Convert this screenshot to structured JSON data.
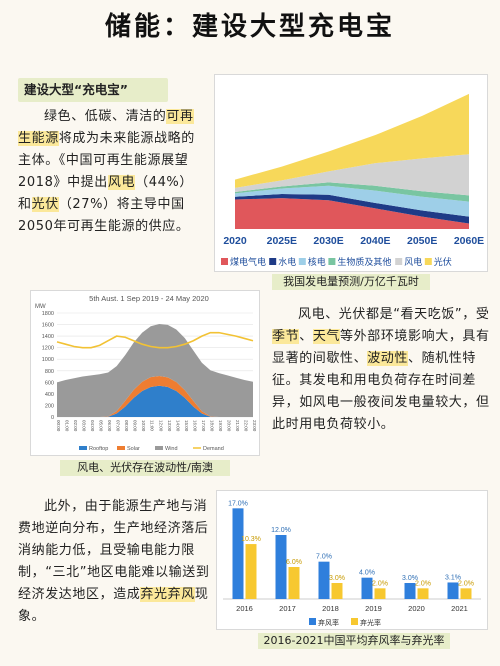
{
  "title": "储能：建设大型充电宝",
  "section_tag": "建设大型“充电宝”",
  "para1": {
    "t1": "绿色、低碳、清洁的",
    "t2": "可再生能源",
    "t3": "将成为未来能源战略的主体。《中国可再生能源展望2018》中提出",
    "t4": "风电",
    "t5": "（44%）和",
    "t6": "光伏",
    "t7": "（27%）将主导中国2050年可再生能源的供应。"
  },
  "para2": {
    "t1": "风电、光伏都是“看天吃饭”，受",
    "t2": "季节",
    "t3": "、",
    "t4": "天气",
    "t5": "等外部环境影响大，具有显著的间歇性、",
    "t6": "波动性",
    "t7": "、随机性特征。其发电和用电负荷存在时间差异，如风电一般夜间发电量较大，但此时用电负荷较小。"
  },
  "para3": {
    "t1": "此外，由于能源生产地与消费地逆向分布，生产地经济落后消纳能力低，且受输电能力限制，“三北”地区电能难以输送到经济发达地区，造成",
    "t2": "弃光弃风",
    "t3": "现象。"
  },
  "chart_data": [
    {
      "type": "area",
      "categories": [
        "2020",
        "2025E",
        "2030E",
        "2040E",
        "2050E",
        "2060E"
      ],
      "series": [
        {
          "name": "煤电气电",
          "color": "#e0575b",
          "values": [
            4.3,
            4.5,
            4.2,
            3.0,
            1.8,
            0.8
          ]
        },
        {
          "name": "水电",
          "color": "#1f3b87",
          "values": [
            0.4,
            0.6,
            0.8,
            0.8,
            0.9,
            1.0
          ]
        },
        {
          "name": "核电",
          "color": "#9ecfe8",
          "values": [
            0.5,
            0.8,
            1.3,
            1.8,
            2.0,
            2.2
          ]
        },
        {
          "name": "生物质及其他",
          "color": "#79c5a1",
          "values": [
            0.2,
            0.3,
            0.5,
            0.7,
            0.8,
            0.9
          ]
        },
        {
          "name": "风电",
          "color": "#d2d2d2",
          "values": [
            0.6,
            0.9,
            1.6,
            3.3,
            4.8,
            6.0
          ]
        },
        {
          "name": "光伏",
          "color": "#f7d85a",
          "values": [
            1.2,
            2.0,
            2.9,
            4.1,
            6.2,
            8.8
          ]
        }
      ],
      "caption": "我国发电量预测/万亿千瓦时"
    },
    {
      "type": "area",
      "title": "5th Aust. 1 Sep 2019 - 24 May 2020",
      "ylabel": "MW",
      "yticks": [
        "0",
        "200",
        "400",
        "600",
        "800",
        "1000",
        "1200",
        "1400",
        "1600",
        "1800"
      ],
      "ylim": [
        0,
        1800
      ],
      "x": [
        "00:00",
        "01:00",
        "02:00",
        "03:00",
        "04:00",
        "05:00",
        "06:00",
        "07:00",
        "08:00",
        "09:00",
        "10:00",
        "11:00",
        "12:00",
        "13:00",
        "14:00",
        "15:00",
        "16:00",
        "17:00",
        "18:00",
        "19:00",
        "20:00",
        "21:00",
        "22:00",
        "23:00"
      ],
      "series": [
        {
          "name": "Rooftop",
          "color": "#2f7fcb",
          "values": [
            0,
            0,
            0,
            0,
            0,
            0,
            5,
            60,
            180,
            330,
            450,
            520,
            540,
            520,
            450,
            330,
            180,
            60,
            5,
            0,
            0,
            0,
            0,
            0
          ]
        },
        {
          "name": "Solar",
          "color": "#ee7d31",
          "values": [
            0,
            0,
            0,
            0,
            0,
            0,
            5,
            40,
            100,
            140,
            160,
            170,
            170,
            165,
            155,
            135,
            100,
            40,
            5,
            0,
            0,
            0,
            0,
            0
          ]
        },
        {
          "name": "Wind",
          "color": "#9a9a9a",
          "values": [
            600,
            640,
            670,
            700,
            720,
            740,
            760,
            780,
            790,
            820,
            850,
            880,
            900,
            910,
            910,
            900,
            870,
            840,
            800,
            760,
            720,
            680,
            640,
            610
          ]
        },
        {
          "name": "Demand",
          "color": "#f2c234",
          "values": [
            1300,
            1260,
            1220,
            1200,
            1200,
            1240,
            1320,
            1400,
            1380,
            1320,
            1260,
            1220,
            1200,
            1200,
            1220,
            1260,
            1320,
            1400,
            1460,
            1460,
            1430,
            1400,
            1360,
            1320
          ]
        }
      ],
      "caption": "风电、光伏存在波动性/南澳"
    },
    {
      "type": "bar",
      "categories": [
        "2016",
        "2017",
        "2018",
        "2019",
        "2020",
        "2021"
      ],
      "series": [
        {
          "name": "弃风率",
          "color": "#2f7fdc",
          "values": [
            17.0,
            12.0,
            7.0,
            4.0,
            3.0,
            3.1
          ]
        },
        {
          "name": "弃光率",
          "color": "#f7c830",
          "values": [
            10.3,
            6.0,
            3.0,
            2.0,
            2.0,
            2.0
          ]
        }
      ],
      "labels": [
        [
          "17.0%",
          "10.3%"
        ],
        [
          "12.0%",
          "6.0%"
        ],
        [
          "7.0%",
          "3.0%"
        ],
        [
          "4.0%",
          "2.0%"
        ],
        [
          "3.0%",
          "2.0%"
        ],
        [
          "3.1%",
          "2.0%"
        ]
      ],
      "ylim": [
        0,
        18
      ],
      "caption": "2016-2021中国平均弃风率与弃光率"
    }
  ]
}
